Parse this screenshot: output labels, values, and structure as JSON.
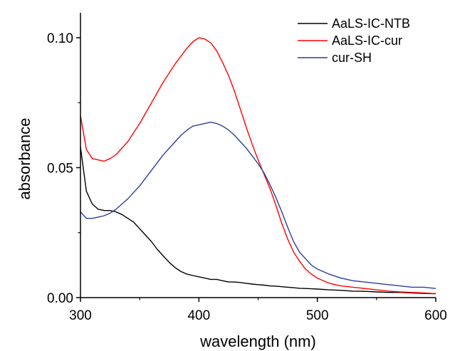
{
  "chart_data": {
    "type": "line",
    "title": "",
    "xlabel": "wavelength (nm)",
    "ylabel": "absorbance",
    "xlim": [
      300,
      600
    ],
    "ylim": [
      0.0,
      0.11
    ],
    "x_ticks": [
      300,
      400,
      500,
      600
    ],
    "x_tick_labels": [
      "300",
      "400",
      "500",
      "600"
    ],
    "y_ticks": [
      0.0,
      0.05,
      0.1
    ],
    "y_tick_labels": [
      "0.00",
      "0.05",
      "0.10"
    ],
    "grid": false,
    "legend_position": "top-right",
    "x": [
      300,
      305,
      310,
      315,
      320,
      325,
      330,
      335,
      340,
      345,
      350,
      355,
      360,
      365,
      370,
      375,
      380,
      385,
      390,
      395,
      400,
      405,
      410,
      415,
      420,
      425,
      430,
      435,
      440,
      445,
      450,
      455,
      460,
      465,
      470,
      475,
      480,
      485,
      490,
      495,
      500,
      510,
      520,
      530,
      540,
      550,
      560,
      570,
      580,
      590,
      600
    ],
    "series": [
      {
        "name": "AaLS-IC-NTB",
        "color": "#000000",
        "values": [
          0.058,
          0.041,
          0.036,
          0.034,
          0.0335,
          0.0335,
          0.033,
          0.032,
          0.0305,
          0.029,
          0.0265,
          0.024,
          0.0215,
          0.0185,
          0.016,
          0.0135,
          0.0115,
          0.01,
          0.009,
          0.0085,
          0.008,
          0.0075,
          0.007,
          0.007,
          0.0065,
          0.006,
          0.006,
          0.0058,
          0.0055,
          0.0052,
          0.005,
          0.0048,
          0.0045,
          0.0044,
          0.0042,
          0.004,
          0.0038,
          0.0036,
          0.0035,
          0.0034,
          0.0033,
          0.003,
          0.0028,
          0.0025,
          0.0024,
          0.0022,
          0.002,
          0.002,
          0.0018,
          0.0016,
          0.0015
        ]
      },
      {
        "name": "AaLS-IC-cur",
        "color": "#ff0000",
        "values": [
          0.07,
          0.057,
          0.0535,
          0.053,
          0.0525,
          0.0535,
          0.055,
          0.0575,
          0.06,
          0.0635,
          0.067,
          0.071,
          0.075,
          0.079,
          0.083,
          0.0865,
          0.09,
          0.093,
          0.096,
          0.0985,
          0.1,
          0.0995,
          0.098,
          0.095,
          0.0905,
          0.0855,
          0.0795,
          0.0725,
          0.0655,
          0.059,
          0.053,
          0.0475,
          0.042,
          0.0355,
          0.0285,
          0.0225,
          0.0175,
          0.014,
          0.011,
          0.009,
          0.0075,
          0.0055,
          0.0045,
          0.004,
          0.0035,
          0.003,
          0.0025,
          0.0022,
          0.002,
          0.0018,
          0.0015
        ]
      },
      {
        "name": "cur-SH",
        "color": "#2b3f9c",
        "values": [
          0.033,
          0.0305,
          0.0305,
          0.031,
          0.0315,
          0.0325,
          0.034,
          0.036,
          0.038,
          0.0405,
          0.043,
          0.046,
          0.049,
          0.052,
          0.055,
          0.0575,
          0.06,
          0.0625,
          0.0645,
          0.066,
          0.0665,
          0.067,
          0.0675,
          0.067,
          0.066,
          0.0645,
          0.0625,
          0.06,
          0.0575,
          0.0545,
          0.0515,
          0.048,
          0.0435,
          0.0385,
          0.033,
          0.027,
          0.0215,
          0.0175,
          0.015,
          0.0125,
          0.011,
          0.009,
          0.0075,
          0.0065,
          0.006,
          0.0055,
          0.005,
          0.0045,
          0.004,
          0.004,
          0.0035
        ]
      }
    ]
  }
}
